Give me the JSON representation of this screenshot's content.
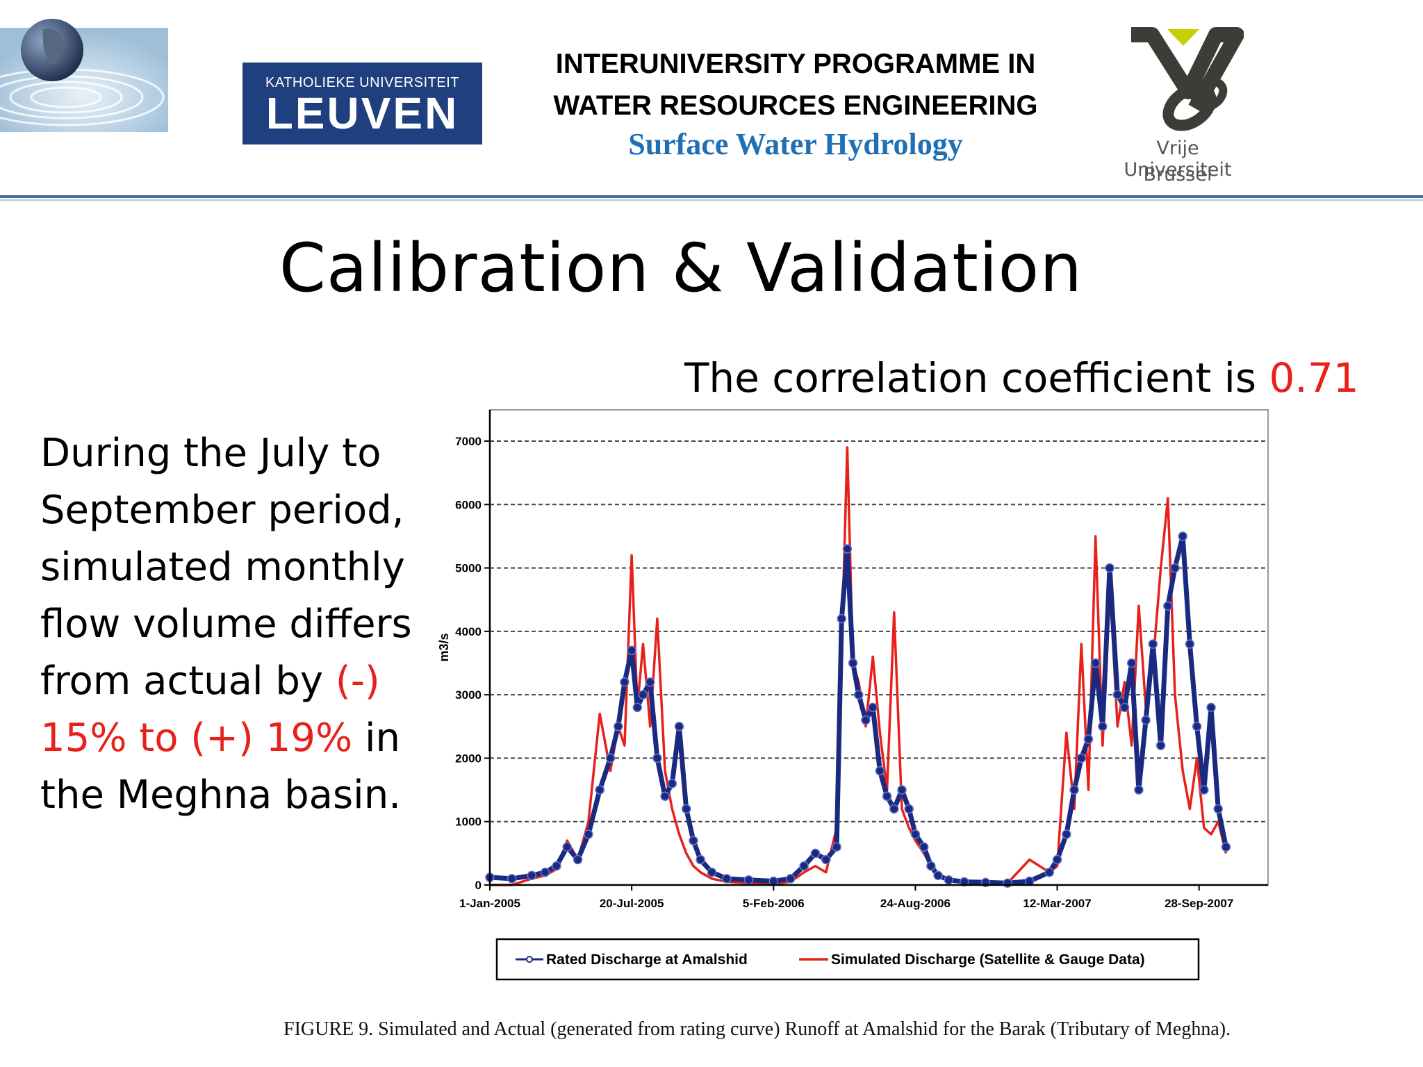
{
  "header": {
    "university_left": {
      "line1": "KATHOLIEKE UNIVERSITEIT",
      "line2": "LEUVEN"
    },
    "programme_title": {
      "line1": "INTERUNIVERSITY PROGRAMME IN",
      "line2": "WATER RESOURCES ENGINEERING"
    },
    "course": "Surface Water Hydrology",
    "university_right": {
      "line1": "Vrije Universiteit",
      "line2": "Brussel"
    }
  },
  "slide": {
    "title": "Calibration & Validation",
    "correlation_text": "The correlation coefficient is ",
    "correlation_value": "0.71",
    "body": {
      "part1": "During the July to September period, simulated monthly flow volume differs from actual by ",
      "highlight": "(-) 15% to (+) 19%",
      "part2": " in the Meghna basin."
    },
    "caption": "FIGURE 9.  Simulated and Actual (generated from rating curve) Runoff at Amalshid for the Barak (Tributary of Meghna)."
  },
  "colors": {
    "simulated": "#e8201a",
    "rated": "#1a2a80",
    "accent_red": "#e8201a",
    "course_blue": "#1f6fb5",
    "kul_blue": "#1f3f7f"
  },
  "chart_data": {
    "type": "line",
    "ylabel": "m3/s",
    "xlabel": "",
    "ylim": [
      0,
      7000
    ],
    "yticks": [
      0,
      1000,
      2000,
      3000,
      4000,
      5000,
      6000,
      7000
    ],
    "xlim": [
      "2005-01-01",
      "2007-11-30"
    ],
    "xticks": [
      "1-Jan-2005",
      "20-Jul-2005",
      "5-Feb-2006",
      "24-Aug-2006",
      "12-Mar-2007",
      "28-Sep-2007"
    ],
    "xtick_dates": [
      "2005-01-01",
      "2005-07-20",
      "2006-02-05",
      "2006-08-24",
      "2007-03-12",
      "2007-09-28"
    ],
    "grid": true,
    "legend_position": "bottom",
    "series": [
      {
        "name": "Rated Discharge at Amalshid",
        "x": [
          "2005-01-01",
          "2005-02-01",
          "2005-03-01",
          "2005-03-20",
          "2005-04-05",
          "2005-04-20",
          "2005-05-05",
          "2005-05-20",
          "2005-06-05",
          "2005-06-20",
          "2005-07-01",
          "2005-07-10",
          "2005-07-20",
          "2005-07-28",
          "2005-08-05",
          "2005-08-15",
          "2005-08-25",
          "2005-09-05",
          "2005-09-15",
          "2005-09-25",
          "2005-10-05",
          "2005-10-15",
          "2005-10-25",
          "2005-11-10",
          "2005-12-01",
          "2006-01-01",
          "2006-02-05",
          "2006-03-01",
          "2006-03-20",
          "2006-04-05",
          "2006-04-20",
          "2006-05-05",
          "2006-05-12",
          "2006-05-20",
          "2006-05-28",
          "2006-06-05",
          "2006-06-15",
          "2006-06-25",
          "2006-07-05",
          "2006-07-15",
          "2006-07-25",
          "2006-08-05",
          "2006-08-15",
          "2006-08-24",
          "2006-09-05",
          "2006-09-15",
          "2006-09-25",
          "2006-10-10",
          "2006-11-01",
          "2006-12-01",
          "2007-01-01",
          "2007-02-01",
          "2007-03-01",
          "2007-03-12",
          "2007-03-25",
          "2007-04-05",
          "2007-04-15",
          "2007-04-25",
          "2007-05-05",
          "2007-05-15",
          "2007-05-25",
          "2007-06-05",
          "2007-06-15",
          "2007-06-25",
          "2007-07-05",
          "2007-07-15",
          "2007-07-25",
          "2007-08-05",
          "2007-08-15",
          "2007-08-25",
          "2007-09-05",
          "2007-09-15",
          "2007-09-25",
          "2007-10-05",
          "2007-10-15",
          "2007-10-25",
          "2007-11-05"
        ],
        "values": [
          120,
          100,
          150,
          200,
          300,
          600,
          400,
          800,
          1500,
          2000,
          2500,
          3200,
          3700,
          2800,
          3000,
          3200,
          2000,
          1400,
          1600,
          2500,
          1200,
          700,
          400,
          200,
          100,
          80,
          60,
          100,
          300,
          500,
          400,
          600,
          4200,
          5300,
          3500,
          3000,
          2600,
          2800,
          1800,
          1400,
          1200,
          1500,
          1200,
          800,
          600,
          300,
          150,
          80,
          50,
          40,
          30,
          60,
          200,
          400,
          800,
          1500,
          2000,
          2300,
          3500,
          2500,
          5000,
          3000,
          2800,
          3500,
          1500,
          2600,
          3800,
          2200,
          4400,
          5000,
          5500,
          3800,
          2500,
          1500,
          2800,
          1200,
          600
        ]
      },
      {
        "name": "Simulated Discharge (Satellite & Gauge Data)",
        "x": [
          "2005-01-01",
          "2005-02-01",
          "2005-03-01",
          "2005-03-20",
          "2005-04-05",
          "2005-04-20",
          "2005-05-05",
          "2005-05-20",
          "2005-06-05",
          "2005-06-20",
          "2005-07-01",
          "2005-07-10",
          "2005-07-20",
          "2005-07-28",
          "2005-08-05",
          "2005-08-15",
          "2005-08-25",
          "2005-09-05",
          "2005-09-15",
          "2005-09-25",
          "2005-10-05",
          "2005-10-15",
          "2005-10-25",
          "2005-11-10",
          "2005-12-01",
          "2006-01-01",
          "2006-02-05",
          "2006-03-01",
          "2006-03-20",
          "2006-04-05",
          "2006-04-20",
          "2006-05-05",
          "2006-05-12",
          "2006-05-20",
          "2006-05-28",
          "2006-06-05",
          "2006-06-15",
          "2006-06-25",
          "2006-07-05",
          "2006-07-15",
          "2006-07-25",
          "2006-08-05",
          "2006-08-15",
          "2006-08-24",
          "2006-09-05",
          "2006-09-15",
          "2006-09-25",
          "2006-10-10",
          "2006-11-01",
          "2006-12-01",
          "2007-01-01",
          "2007-02-01",
          "2007-03-01",
          "2007-03-12",
          "2007-03-25",
          "2007-04-05",
          "2007-04-15",
          "2007-04-25",
          "2007-05-05",
          "2007-05-15",
          "2007-05-25",
          "2007-06-05",
          "2007-06-15",
          "2007-06-25",
          "2007-07-05",
          "2007-07-15",
          "2007-07-25",
          "2007-08-05",
          "2007-08-15",
          "2007-08-25",
          "2007-09-05",
          "2007-09-15",
          "2007-09-25",
          "2007-10-05",
          "2007-10-15",
          "2007-10-25",
          "2007-11-05"
        ],
        "values": [
          0,
          0,
          100,
          150,
          250,
          700,
          400,
          1000,
          2700,
          1800,
          2500,
          2200,
          5200,
          2800,
          3800,
          2500,
          4200,
          1800,
          1200,
          800,
          500,
          300,
          200,
          100,
          50,
          30,
          20,
          50,
          200,
          300,
          200,
          900,
          3700,
          6900,
          3500,
          3200,
          2500,
          3600,
          2400,
          1500,
          4300,
          1200,
          900,
          700,
          500,
          300,
          150,
          80,
          50,
          40,
          30,
          400,
          200,
          300,
          2400,
          1200,
          3800,
          1500,
          5500,
          2200,
          4800,
          2500,
          3200,
          2200,
          4400,
          2800,
          3500,
          5000,
          6100,
          3000,
          1800,
          1200,
          2000,
          900,
          800,
          1000,
          500
        ]
      }
    ]
  }
}
